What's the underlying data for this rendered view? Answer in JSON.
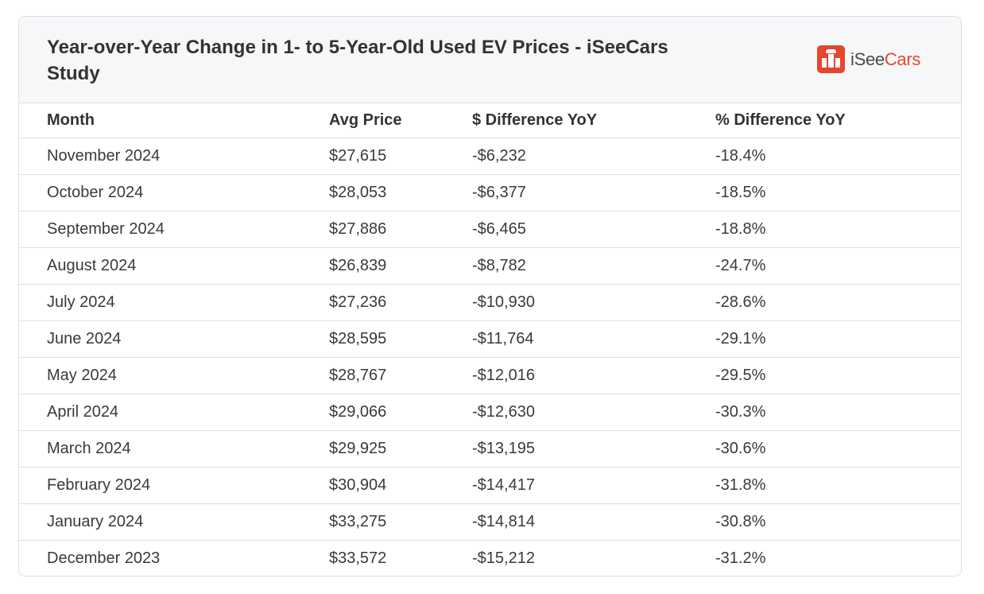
{
  "title": "Year-over-Year Change in 1- to 5-Year-Old Used EV Prices - iSeeCars Study",
  "logo": {
    "part1": "iSee",
    "part2": "Cars",
    "accent_color": "#e8452c"
  },
  "table": {
    "headers": [
      "Month",
      "Avg Price",
      "$ Difference YoY",
      "% Difference YoY"
    ],
    "rows": [
      [
        "November 2024",
        "$27,615",
        "-$6,232",
        "-18.4%"
      ],
      [
        "October 2024",
        "$28,053",
        "-$6,377",
        "-18.5%"
      ],
      [
        "September 2024",
        "$27,886",
        "-$6,465",
        "-18.8%"
      ],
      [
        "August 2024",
        "$26,839",
        "-$8,782",
        "-24.7%"
      ],
      [
        "July 2024",
        "$27,236",
        "-$10,930",
        "-28.6%"
      ],
      [
        "June 2024",
        "$28,595",
        "-$11,764",
        "-29.1%"
      ],
      [
        "May 2024",
        "$28,767",
        "-$12,016",
        "-29.5%"
      ],
      [
        "April 2024",
        "$29,066",
        "-$12,630",
        "-30.3%"
      ],
      [
        "March 2024",
        "$29,925",
        "-$13,195",
        "-30.6%"
      ],
      [
        "February 2024",
        "$30,904",
        "-$14,417",
        "-31.8%"
      ],
      [
        "January 2024",
        "$33,275",
        "-$14,814",
        "-30.8%"
      ],
      [
        "December 2023",
        "$33,572",
        "-$15,212",
        "-31.2%"
      ]
    ]
  }
}
